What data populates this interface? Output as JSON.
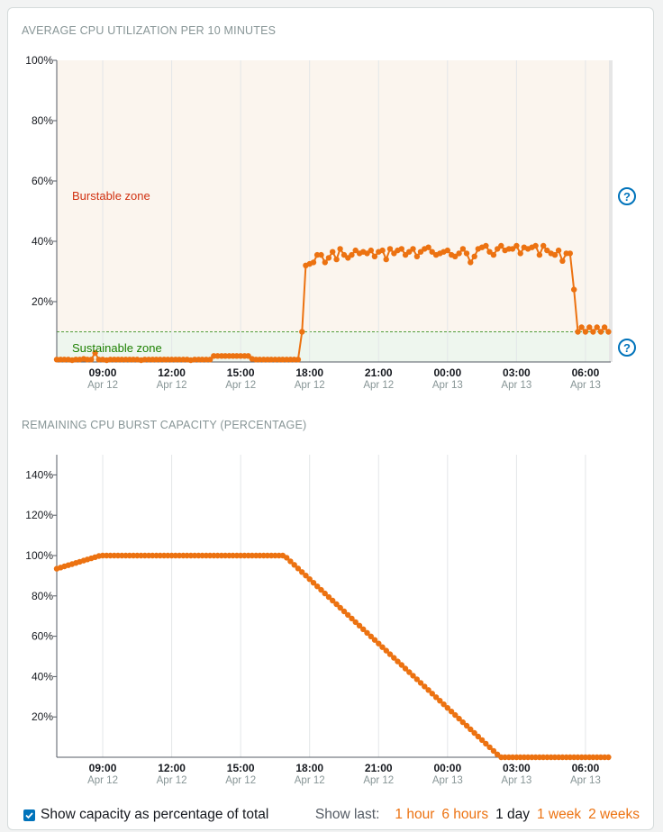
{
  "colors": {
    "series": "#ec7211",
    "burst_zone_bg": "#fbf5ee",
    "sustain_zone_bg": "#eef6ee",
    "burst_label": "#d13212",
    "sustain_label": "#1d8102",
    "help_icon": "#0073bb",
    "grid": "#e3e6e8"
  },
  "chart1_title": "Average CPU utilization per 10 minutes",
  "chart2_title": "Remaining CPU burst capacity (percentage)",
  "zones": {
    "burstable": "Burstable zone",
    "sustainable": "Sustainable zone",
    "help": "?"
  },
  "footer": {
    "checkbox_label": "Show capacity as percentage of total",
    "show_last_label": "Show last:",
    "ranges": [
      "1 hour",
      "6 hours",
      "1 day",
      "1 week",
      "2 weeks"
    ],
    "active_range": "1 day"
  },
  "chart_data": [
    {
      "type": "line",
      "title": "Average CPU utilization per 10 minutes",
      "x_labels": [
        {
          "time": "09:00",
          "date": "Apr 12"
        },
        {
          "time": "12:00",
          "date": "Apr 12"
        },
        {
          "time": "15:00",
          "date": "Apr 12"
        },
        {
          "time": "18:00",
          "date": "Apr 12"
        },
        {
          "time": "21:00",
          "date": "Apr 12"
        },
        {
          "time": "00:00",
          "date": "Apr 13"
        },
        {
          "time": "03:00",
          "date": "Apr 13"
        },
        {
          "time": "06:00",
          "date": "Apr 13"
        }
      ],
      "x_tick_hours": [
        9,
        12,
        15,
        18,
        21,
        24,
        27,
        30
      ],
      "x_range_hours": [
        7,
        31.1
      ],
      "y_ticks": [
        "20%",
        "40%",
        "60%",
        "80%",
        "100%"
      ],
      "y_tick_values": [
        20,
        40,
        60,
        80,
        100
      ],
      "ylim": [
        0,
        100
      ],
      "sustainable_threshold": 10,
      "series": [
        {
          "name": "CPU utilization",
          "hours": [
            7.0,
            7.17,
            7.33,
            7.5,
            7.67,
            7.83,
            8.0,
            8.17,
            8.33,
            8.5,
            8.67,
            8.83,
            9.0,
            9.17,
            9.33,
            9.5,
            9.67,
            9.83,
            10.0,
            10.17,
            10.33,
            10.5,
            10.67,
            10.83,
            11.0,
            11.17,
            11.33,
            11.5,
            11.67,
            11.83,
            12.0,
            12.17,
            12.33,
            12.5,
            12.67,
            12.83,
            13.0,
            13.17,
            13.33,
            13.5,
            13.67,
            13.83,
            14.0,
            14.17,
            14.33,
            14.5,
            14.67,
            14.83,
            15.0,
            15.17,
            15.33,
            15.5,
            15.67,
            15.83,
            16.0,
            16.17,
            16.33,
            16.5,
            16.67,
            16.83,
            17.0,
            17.17,
            17.33,
            17.5,
            17.67,
            17.83,
            18.0,
            18.17,
            18.33,
            18.5,
            18.67,
            18.83,
            19.0,
            19.17,
            19.33,
            19.5,
            19.67,
            19.83,
            20.0,
            20.17,
            20.33,
            20.5,
            20.67,
            20.83,
            21.0,
            21.17,
            21.33,
            21.5,
            21.67,
            21.83,
            22.0,
            22.17,
            22.33,
            22.5,
            22.67,
            22.83,
            23.0,
            23.17,
            23.33,
            23.5,
            23.67,
            23.83,
            24.0,
            24.17,
            24.33,
            24.5,
            24.67,
            24.83,
            25.0,
            25.17,
            25.33,
            25.5,
            25.67,
            25.83,
            26.0,
            26.17,
            26.33,
            26.5,
            26.67,
            26.83,
            27.0,
            27.17,
            27.33,
            27.5,
            27.67,
            27.83,
            28.0,
            28.17,
            28.33,
            28.5,
            28.67,
            28.83,
            29.0,
            29.17,
            29.33,
            29.5,
            29.67,
            29.83,
            30.0,
            30.17,
            30.33,
            30.5,
            30.67,
            30.83,
            31.0
          ],
          "values": [
            0.8,
            0.8,
            0.8,
            0.8,
            0.6,
            0.8,
            0.8,
            1.0,
            0.8,
            0.8,
            3.0,
            0.8,
            0.8,
            0.6,
            0.8,
            0.8,
            0.8,
            0.8,
            0.8,
            0.8,
            0.8,
            0.8,
            0.6,
            0.8,
            0.8,
            0.8,
            0.8,
            0.8,
            0.8,
            0.8,
            0.8,
            0.8,
            0.8,
            0.8,
            0.8,
            0.6,
            0.8,
            0.8,
            0.8,
            0.8,
            0.8,
            2.0,
            2.0,
            2.0,
            2.0,
            2.0,
            2.0,
            2.0,
            2.0,
            2.0,
            2.0,
            1.0,
            0.8,
            0.8,
            0.8,
            0.8,
            0.8,
            0.8,
            0.8,
            0.8,
            0.8,
            0.8,
            0.8,
            0.8,
            10.0,
            32.0,
            32.5,
            33.0,
            35.5,
            35.5,
            33.0,
            34.5,
            36.5,
            34.0,
            37.5,
            35.5,
            34.5,
            35.5,
            37.0,
            36.0,
            36.5,
            36.0,
            37.0,
            35.0,
            36.5,
            37.0,
            34.0,
            37.5,
            36.0,
            37.0,
            37.5,
            35.5,
            36.5,
            37.5,
            35.0,
            36.5,
            37.5,
            38.0,
            36.5,
            35.5,
            36.0,
            36.5,
            37.0,
            35.5,
            35.0,
            36.0,
            37.5,
            36.0,
            33.0,
            35.0,
            37.5,
            38.0,
            38.5,
            36.5,
            35.5,
            37.5,
            38.5,
            37.0,
            37.5,
            37.5,
            38.5,
            36.0,
            38.0,
            37.5,
            38.0,
            38.5,
            35.5,
            38.5,
            37.0,
            36.0,
            35.5,
            37.0,
            33.5,
            36.0,
            36.0,
            24.0,
            10.0,
            11.5,
            10.0,
            11.5,
            10.0,
            11.5,
            10.0,
            11.5,
            10.0
          ]
        }
      ]
    },
    {
      "type": "line",
      "title": "Remaining CPU burst capacity (percentage)",
      "x_labels": [
        {
          "time": "09:00",
          "date": "Apr 12"
        },
        {
          "time": "12:00",
          "date": "Apr 12"
        },
        {
          "time": "15:00",
          "date": "Apr 12"
        },
        {
          "time": "18:00",
          "date": "Apr 12"
        },
        {
          "time": "21:00",
          "date": "Apr 12"
        },
        {
          "time": "00:00",
          "date": "Apr 13"
        },
        {
          "time": "03:00",
          "date": "Apr 13"
        },
        {
          "time": "06:00",
          "date": "Apr 13"
        }
      ],
      "x_tick_hours": [
        9,
        12,
        15,
        18,
        21,
        24,
        27,
        30
      ],
      "x_range_hours": [
        7,
        31.1
      ],
      "y_ticks": [
        "20%",
        "40%",
        "60%",
        "80%",
        "100%",
        "120%",
        "140%"
      ],
      "y_tick_values": [
        20,
        40,
        60,
        80,
        100,
        120,
        140
      ],
      "ylim": [
        0,
        150
      ],
      "series": [
        {
          "name": "Burst capacity",
          "hours": [
            7.0,
            8.9,
            16.9,
            26.3,
            31.0
          ],
          "values": [
            93.5,
            100,
            100,
            0,
            0
          ]
        }
      ]
    }
  ]
}
